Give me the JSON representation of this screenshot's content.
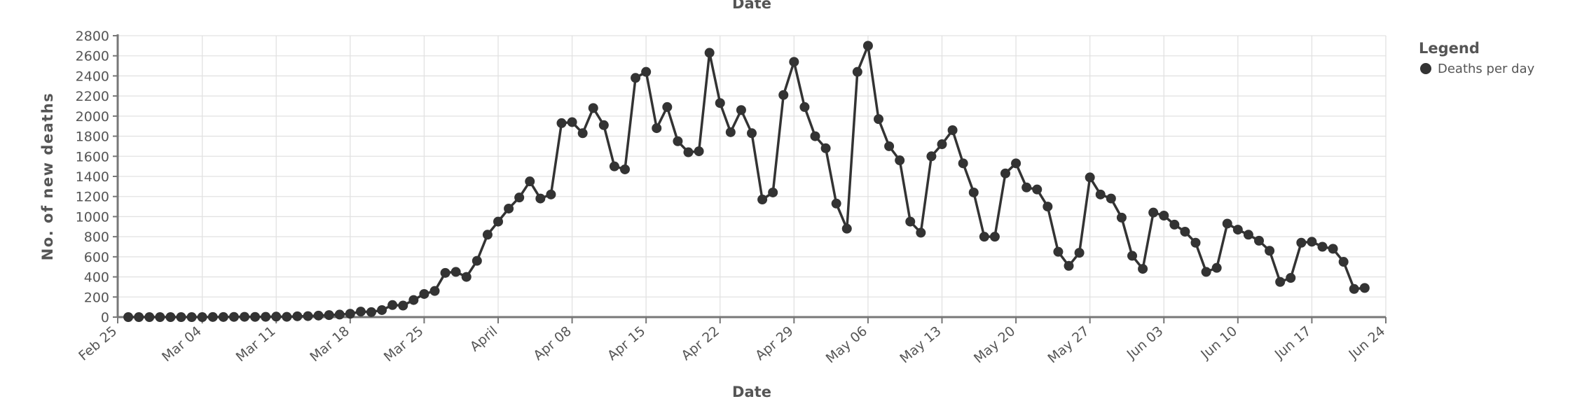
{
  "chart_data": {
    "type": "line",
    "top_axis_label": "Date",
    "x_label": "Date",
    "y_label": "No. of new deaths",
    "legend_title": "Legend",
    "legend": "top-right-outside",
    "grid": true,
    "x": [
      "Feb 26",
      "Feb 27",
      "Feb 28",
      "Feb 29",
      "Mar 01",
      "Mar 02",
      "Mar 03",
      "Mar 04",
      "Mar 05",
      "Mar 06",
      "Mar 07",
      "Mar 08",
      "Mar 09",
      "Mar 10",
      "Mar 11",
      "Mar 12",
      "Mar 13",
      "Mar 14",
      "Mar 15",
      "Mar 16",
      "Mar 17",
      "Mar 18",
      "Mar 19",
      "Mar 20",
      "Mar 21",
      "Mar 22",
      "Mar 23",
      "Mar 24",
      "Mar 25",
      "Mar 26",
      "Mar 27",
      "Mar 28",
      "Mar 29",
      "Mar 30",
      "Mar 31",
      "Apr 01",
      "Apr 02",
      "Apr 03",
      "Apr 04",
      "Apr 05",
      "Apr 06",
      "Apr 07",
      "Apr 08",
      "Apr 09",
      "Apr 10",
      "Apr 11",
      "Apr 12",
      "Apr 13",
      "Apr 14",
      "Apr 15",
      "Apr 16",
      "Apr 17",
      "Apr 18",
      "Apr 19",
      "Apr 20",
      "Apr 21",
      "Apr 22",
      "Apr 23",
      "Apr 24",
      "Apr 25",
      "Apr 26",
      "Apr 27",
      "Apr 28",
      "Apr 29",
      "Apr 30",
      "May 01",
      "May 02",
      "May 03",
      "May 04",
      "May 05",
      "May 06",
      "May 07",
      "May 08",
      "May 09",
      "May 10",
      "May 11",
      "May 12",
      "May 13",
      "May 14",
      "May 15",
      "May 16",
      "May 17",
      "May 18",
      "May 19",
      "May 20",
      "May 21",
      "May 22",
      "May 23",
      "May 24",
      "May 25",
      "May 26",
      "May 27",
      "May 28",
      "May 29",
      "May 30",
      "May 31",
      "Jun 01",
      "Jun 02",
      "Jun 03",
      "Jun 04",
      "Jun 05",
      "Jun 06",
      "Jun 07",
      "Jun 08",
      "Jun 09",
      "Jun 10",
      "Jun 11",
      "Jun 12",
      "Jun 13",
      "Jun 14",
      "Jun 15",
      "Jun 16",
      "Jun 17",
      "Jun 18",
      "Jun 19",
      "Jun 20",
      "Jun 21",
      "Jun 22"
    ],
    "series": [
      {
        "name": "Deaths per day",
        "color": "#333333",
        "values": [
          0,
          0,
          0,
          0,
          0,
          0,
          0,
          0,
          1,
          1,
          2,
          3,
          2,
          3,
          5,
          3,
          8,
          10,
          15,
          20,
          25,
          33,
          55,
          50,
          70,
          120,
          115,
          170,
          230,
          260,
          440,
          450,
          400,
          560,
          820,
          950,
          1080,
          1190,
          1350,
          1180,
          1220,
          1930,
          1940,
          1830,
          2080,
          1910,
          1500,
          1470,
          2380,
          2440,
          1880,
          2090,
          1750,
          1640,
          1650,
          2630,
          2130,
          1840,
          2060,
          1830,
          1170,
          1240,
          2210,
          2540,
          2090,
          1800,
          1680,
          1130,
          880,
          2440,
          2700,
          1970,
          1700,
          1560,
          950,
          840,
          1600,
          1720,
          1860,
          1530,
          1240,
          800,
          800,
          1430,
          1530,
          1290,
          1270,
          1100,
          650,
          510,
          640,
          1390,
          1220,
          1180,
          990,
          610,
          480,
          1040,
          1010,
          920,
          850,
          740,
          450,
          490,
          930,
          870,
          820,
          760,
          660,
          350,
          390,
          740,
          750,
          700,
          680,
          550,
          280,
          290
        ]
      }
    ],
    "xlim": [
      "Feb 25",
      "Jun 24"
    ],
    "xticks": [
      "Feb 25",
      "Mar 04",
      "Mar 11",
      "Mar 18",
      "Mar 25",
      {
        "value": "Apr 01",
        "label": "April"
      },
      "Apr 08",
      "Apr 15",
      "Apr 22",
      "Apr 29",
      "May 06",
      "May 13",
      "May 20",
      "May 27",
      "Jun 03",
      "Jun 10",
      "Jun 17",
      "Jun 24"
    ],
    "ylim": [
      0,
      2800
    ],
    "yticks": [
      0,
      200,
      400,
      600,
      800,
      1000,
      1200,
      1400,
      1600,
      1800,
      2000,
      2200,
      2400,
      2600,
      2800
    ]
  }
}
